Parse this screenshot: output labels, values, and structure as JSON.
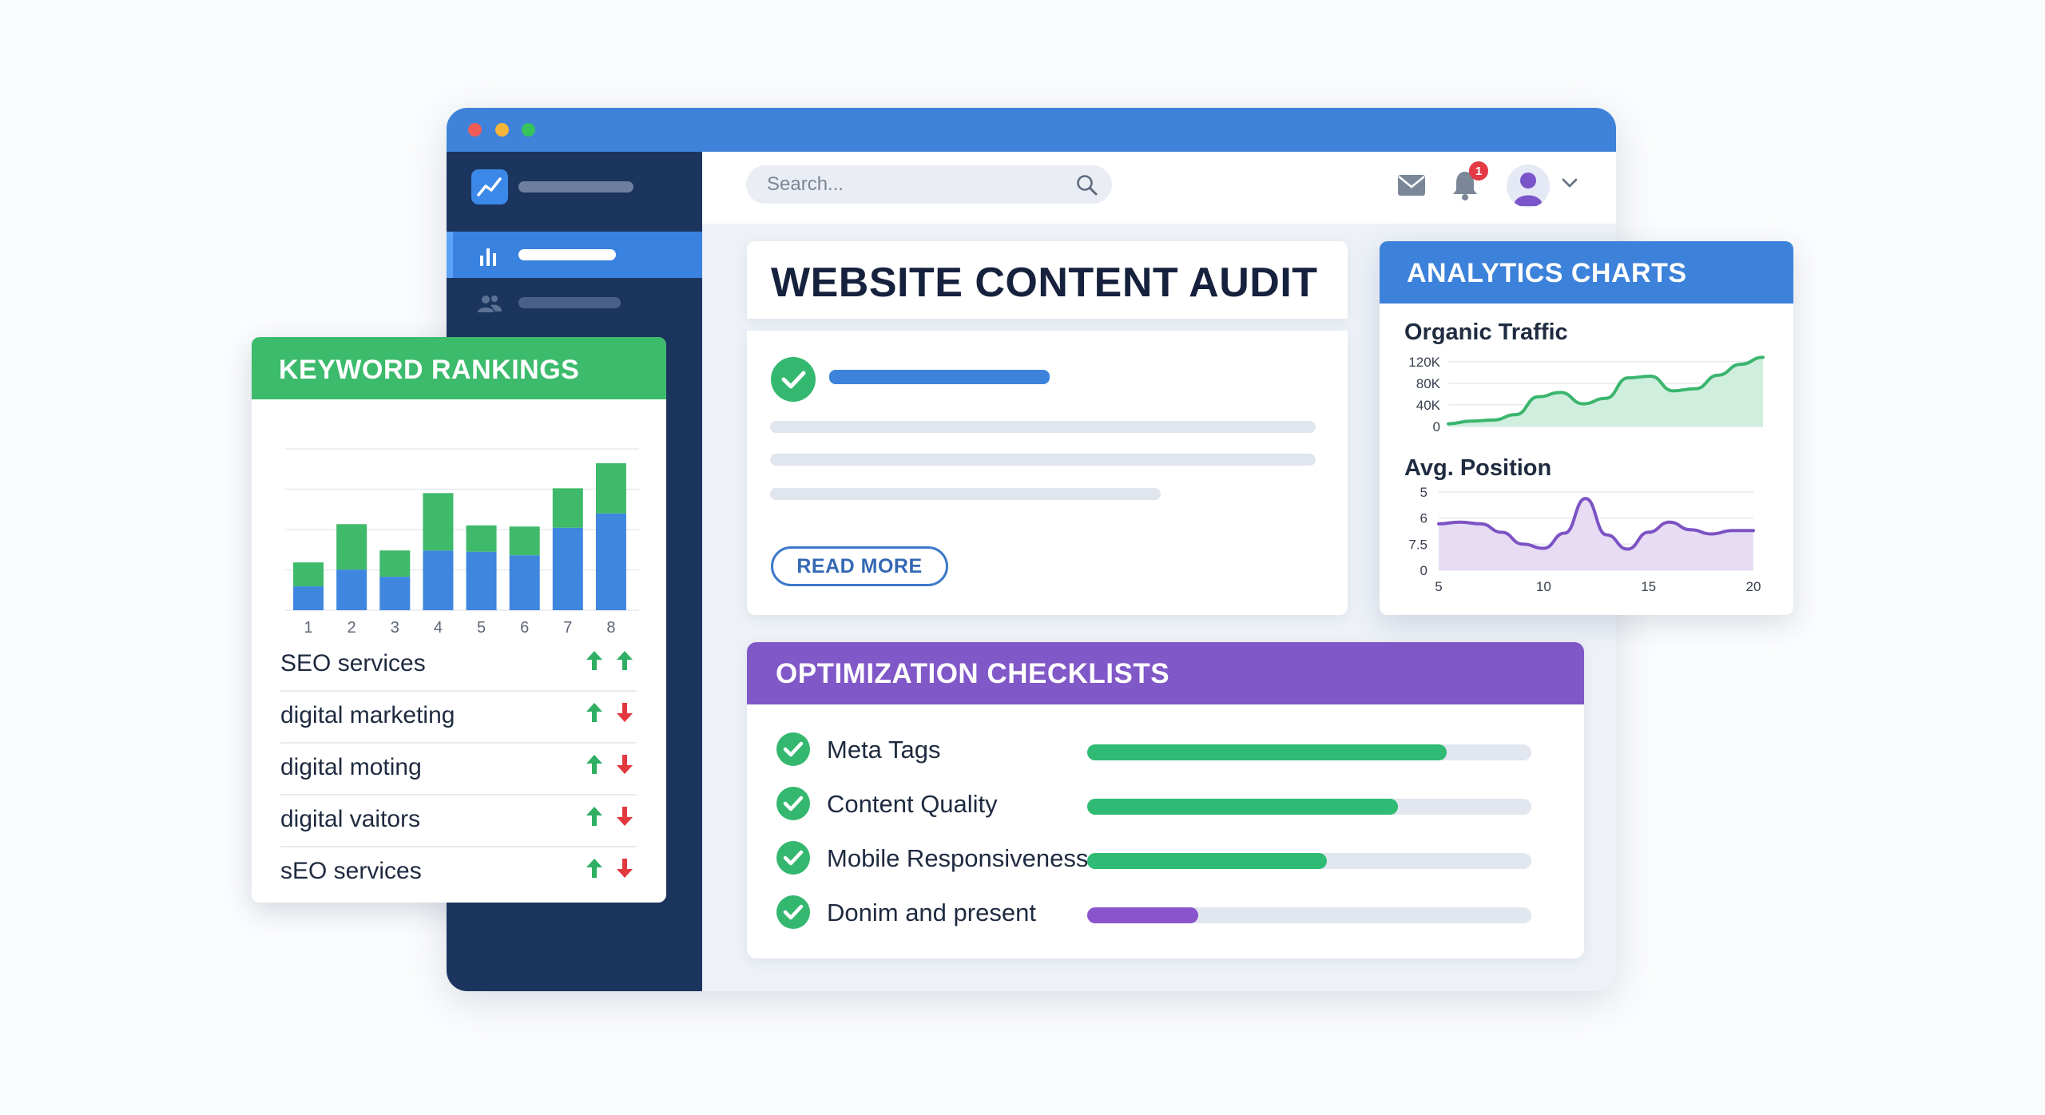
{
  "search": {
    "placeholder": "Search..."
  },
  "notifications": {
    "count": "1"
  },
  "audit": {
    "title": "WEBSITE CONTENT AUDIT",
    "read_more_label": "READ MORE"
  },
  "checklists": {
    "title": "OPTIMIZATION CHECKLISTS",
    "items": [
      {
        "label": "Meta Tags",
        "progress": 0.81,
        "color": "#2fbb73"
      },
      {
        "label": "Content Quality",
        "progress": 0.7,
        "color": "#2fbb73"
      },
      {
        "label": "Mobile Responsiveness",
        "progress": 0.54,
        "color": "#2fbb73"
      },
      {
        "label": "Donim and present",
        "progress": 0.25,
        "color": "#8a55cc"
      }
    ]
  },
  "keywords": {
    "title": "KEYWORD RANKINGS",
    "items": [
      {
        "label": "SEO services",
        "trend": [
          "up",
          "up"
        ]
      },
      {
        "label": "digital marketing",
        "trend": [
          "up",
          "down"
        ]
      },
      {
        "label": "digital moting",
        "trend": [
          "up",
          "down"
        ]
      },
      {
        "label": "digital vaitors",
        "trend": [
          "up",
          "down"
        ]
      },
      {
        "label": "sEO services",
        "trend": [
          "up",
          "down"
        ]
      }
    ]
  },
  "analytics": {
    "title": "ANALYTICS CHARTS",
    "traffic_title": "Organic Traffic",
    "position_title": "Avg. Position"
  },
  "colors": {
    "window_bar": "#3f82d9",
    "sidebar": "#1b355f",
    "keyword_green": "#3dbb6c",
    "checklist_purple": "#8058c7",
    "analytics_blue": "#3d82da",
    "arrow_up": "#2fae64",
    "arrow_down": "#e2383f"
  },
  "chart_data": [
    {
      "type": "bar",
      "stacked": true,
      "categories": [
        "1",
        "2",
        "3",
        "4",
        "5",
        "6",
        "7",
        "8"
      ],
      "series": [
        {
          "values": [
            20,
            34,
            28,
            50,
            49,
            46,
            69,
            81
          ],
          "color": "#3f86df"
        },
        {
          "values": [
            20,
            38,
            22,
            48,
            22,
            24,
            33,
            42
          ],
          "color": "#3fba6a"
        }
      ],
      "ylim": [
        0,
        135
      ],
      "grid": true
    },
    {
      "type": "area",
      "title": "Organic Traffic",
      "x": [
        0,
        1,
        2,
        3,
        4,
        5,
        6,
        7,
        8,
        9,
        10,
        11,
        12,
        13,
        14
      ],
      "series": [
        {
          "values": [
            5,
            10,
            12,
            22,
            55,
            63,
            42,
            52,
            90,
            93,
            66,
            70,
            95,
            115,
            128
          ],
          "color": "#3ab56e"
        }
      ],
      "y_ticks": [
        "0",
        "40K",
        "80K",
        "120K"
      ],
      "ylim": [
        0,
        130
      ],
      "grid": true
    },
    {
      "type": "area",
      "title": "Avg. Position",
      "x": [
        5,
        6,
        7,
        8,
        9,
        10,
        11,
        12,
        13,
        14,
        15,
        16,
        17,
        18,
        19,
        20
      ],
      "series": [
        {
          "values": [
            5.2,
            5.0,
            5.2,
            6.2,
            7.6,
            8.1,
            6.3,
            2.2,
            6.5,
            8.2,
            6.2,
            5.0,
            5.9,
            6.4,
            6.0,
            6.0
          ],
          "color": "#7d53c4"
        }
      ],
      "x_ticks": [
        "5",
        "10",
        "15",
        "20"
      ],
      "y_ticks": [
        "5",
        "6",
        "7.5",
        "0"
      ],
      "grid": true
    }
  ]
}
